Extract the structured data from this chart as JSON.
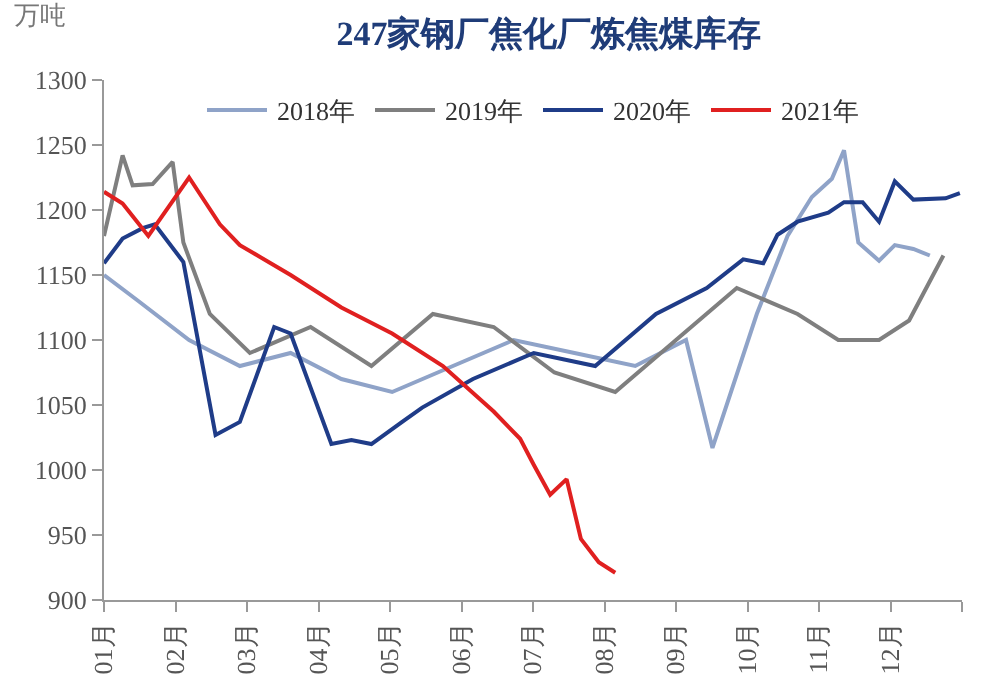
{
  "chart_data": {
    "type": "line",
    "title": "247家钢厂焦化厂炼焦煤库存",
    "ylabel": "万吨",
    "xlim": [
      1,
      13
    ],
    "xticks": [
      {
        "value": 1,
        "label": "01月"
      },
      {
        "value": 2,
        "label": "02月"
      },
      {
        "value": 3,
        "label": "03月"
      },
      {
        "value": 4,
        "label": "04月"
      },
      {
        "value": 5,
        "label": "05月"
      },
      {
        "value": 6,
        "label": "06月"
      },
      {
        "value": 7,
        "label": "07月"
      },
      {
        "value": 8,
        "label": "08月"
      },
      {
        "value": 9,
        "label": "09月"
      },
      {
        "value": 10,
        "label": "10月"
      },
      {
        "value": 11,
        "label": "11月"
      },
      {
        "value": 12,
        "label": "12月"
      },
      {
        "value": 13,
        "label": null
      }
    ],
    "ylim": [
      900,
      1300
    ],
    "yticks": [
      900,
      950,
      1000,
      1050,
      1100,
      1150,
      1200,
      1250,
      1300
    ],
    "legend": "top",
    "marker": "none",
    "line_style": "solid",
    "series": [
      {
        "name": "2018年",
        "color": "#8fa3c8",
        "x": [
          1.0,
          1.48,
          2.19,
          2.9,
          3.61,
          4.32,
          5.03,
          5.88,
          6.73,
          7.58,
          8.43,
          9.14,
          9.51,
          10.13,
          10.56,
          10.9,
          11.18,
          11.35,
          11.55,
          11.84,
          12.06,
          12.32,
          12.55
        ],
        "values": [
          1150,
          1130,
          1100,
          1080,
          1090,
          1070,
          1060,
          1080,
          1100,
          1090,
          1080,
          1100,
          1017,
          1120,
          1180,
          1210,
          1224,
          1246,
          1175,
          1161,
          1173,
          1170,
          1165
        ]
      },
      {
        "name": "2019年",
        "color": "#7f7f7f",
        "x": [
          1.0,
          1.26,
          1.4,
          1.68,
          1.96,
          2.11,
          2.48,
          3.04,
          3.89,
          4.74,
          5.6,
          6.45,
          7.3,
          8.15,
          9.0,
          9.85,
          10.7,
          11.27,
          11.84,
          12.26,
          12.74
        ],
        "values": [
          1180,
          1242,
          1219,
          1220,
          1237,
          1175,
          1120,
          1090,
          1110,
          1080,
          1120,
          1110,
          1075,
          1060,
          1100,
          1140,
          1120,
          1100,
          1100,
          1115,
          1165
        ]
      },
      {
        "name": "2020年",
        "color": "#1f3c88",
        "x": [
          1.0,
          1.26,
          1.54,
          1.71,
          2.11,
          2.56,
          2.9,
          3.38,
          3.61,
          4.18,
          4.46,
          4.74,
          5.17,
          5.45,
          6.16,
          7.01,
          7.87,
          8.72,
          9.43,
          9.94,
          10.22,
          10.42,
          10.7,
          11.13,
          11.35,
          11.61,
          11.84,
          12.06,
          12.32,
          12.77,
          12.97
        ],
        "values": [
          1159,
          1178,
          1186,
          1189,
          1160,
          1027,
          1037,
          1110,
          1105,
          1020,
          1023,
          1020,
          1037,
          1048,
          1070,
          1090,
          1080,
          1120,
          1140,
          1162,
          1159,
          1181,
          1191,
          1198,
          1206,
          1206,
          1191,
          1222,
          1208,
          1209,
          1213
        ]
      },
      {
        "name": "2021年",
        "color": "#e02020",
        "x": [
          1.0,
          1.26,
          1.62,
          2.19,
          2.62,
          2.9,
          3.61,
          4.32,
          5.03,
          5.74,
          6.45,
          6.82,
          7.01,
          7.24,
          7.47,
          7.67,
          7.92,
          8.15
        ],
        "values": [
          1214,
          1205,
          1180,
          1225,
          1189,
          1173,
          1150,
          1125,
          1105,
          1080,
          1045,
          1024,
          1004,
          981,
          993,
          947,
          929,
          921
        ]
      }
    ]
  }
}
